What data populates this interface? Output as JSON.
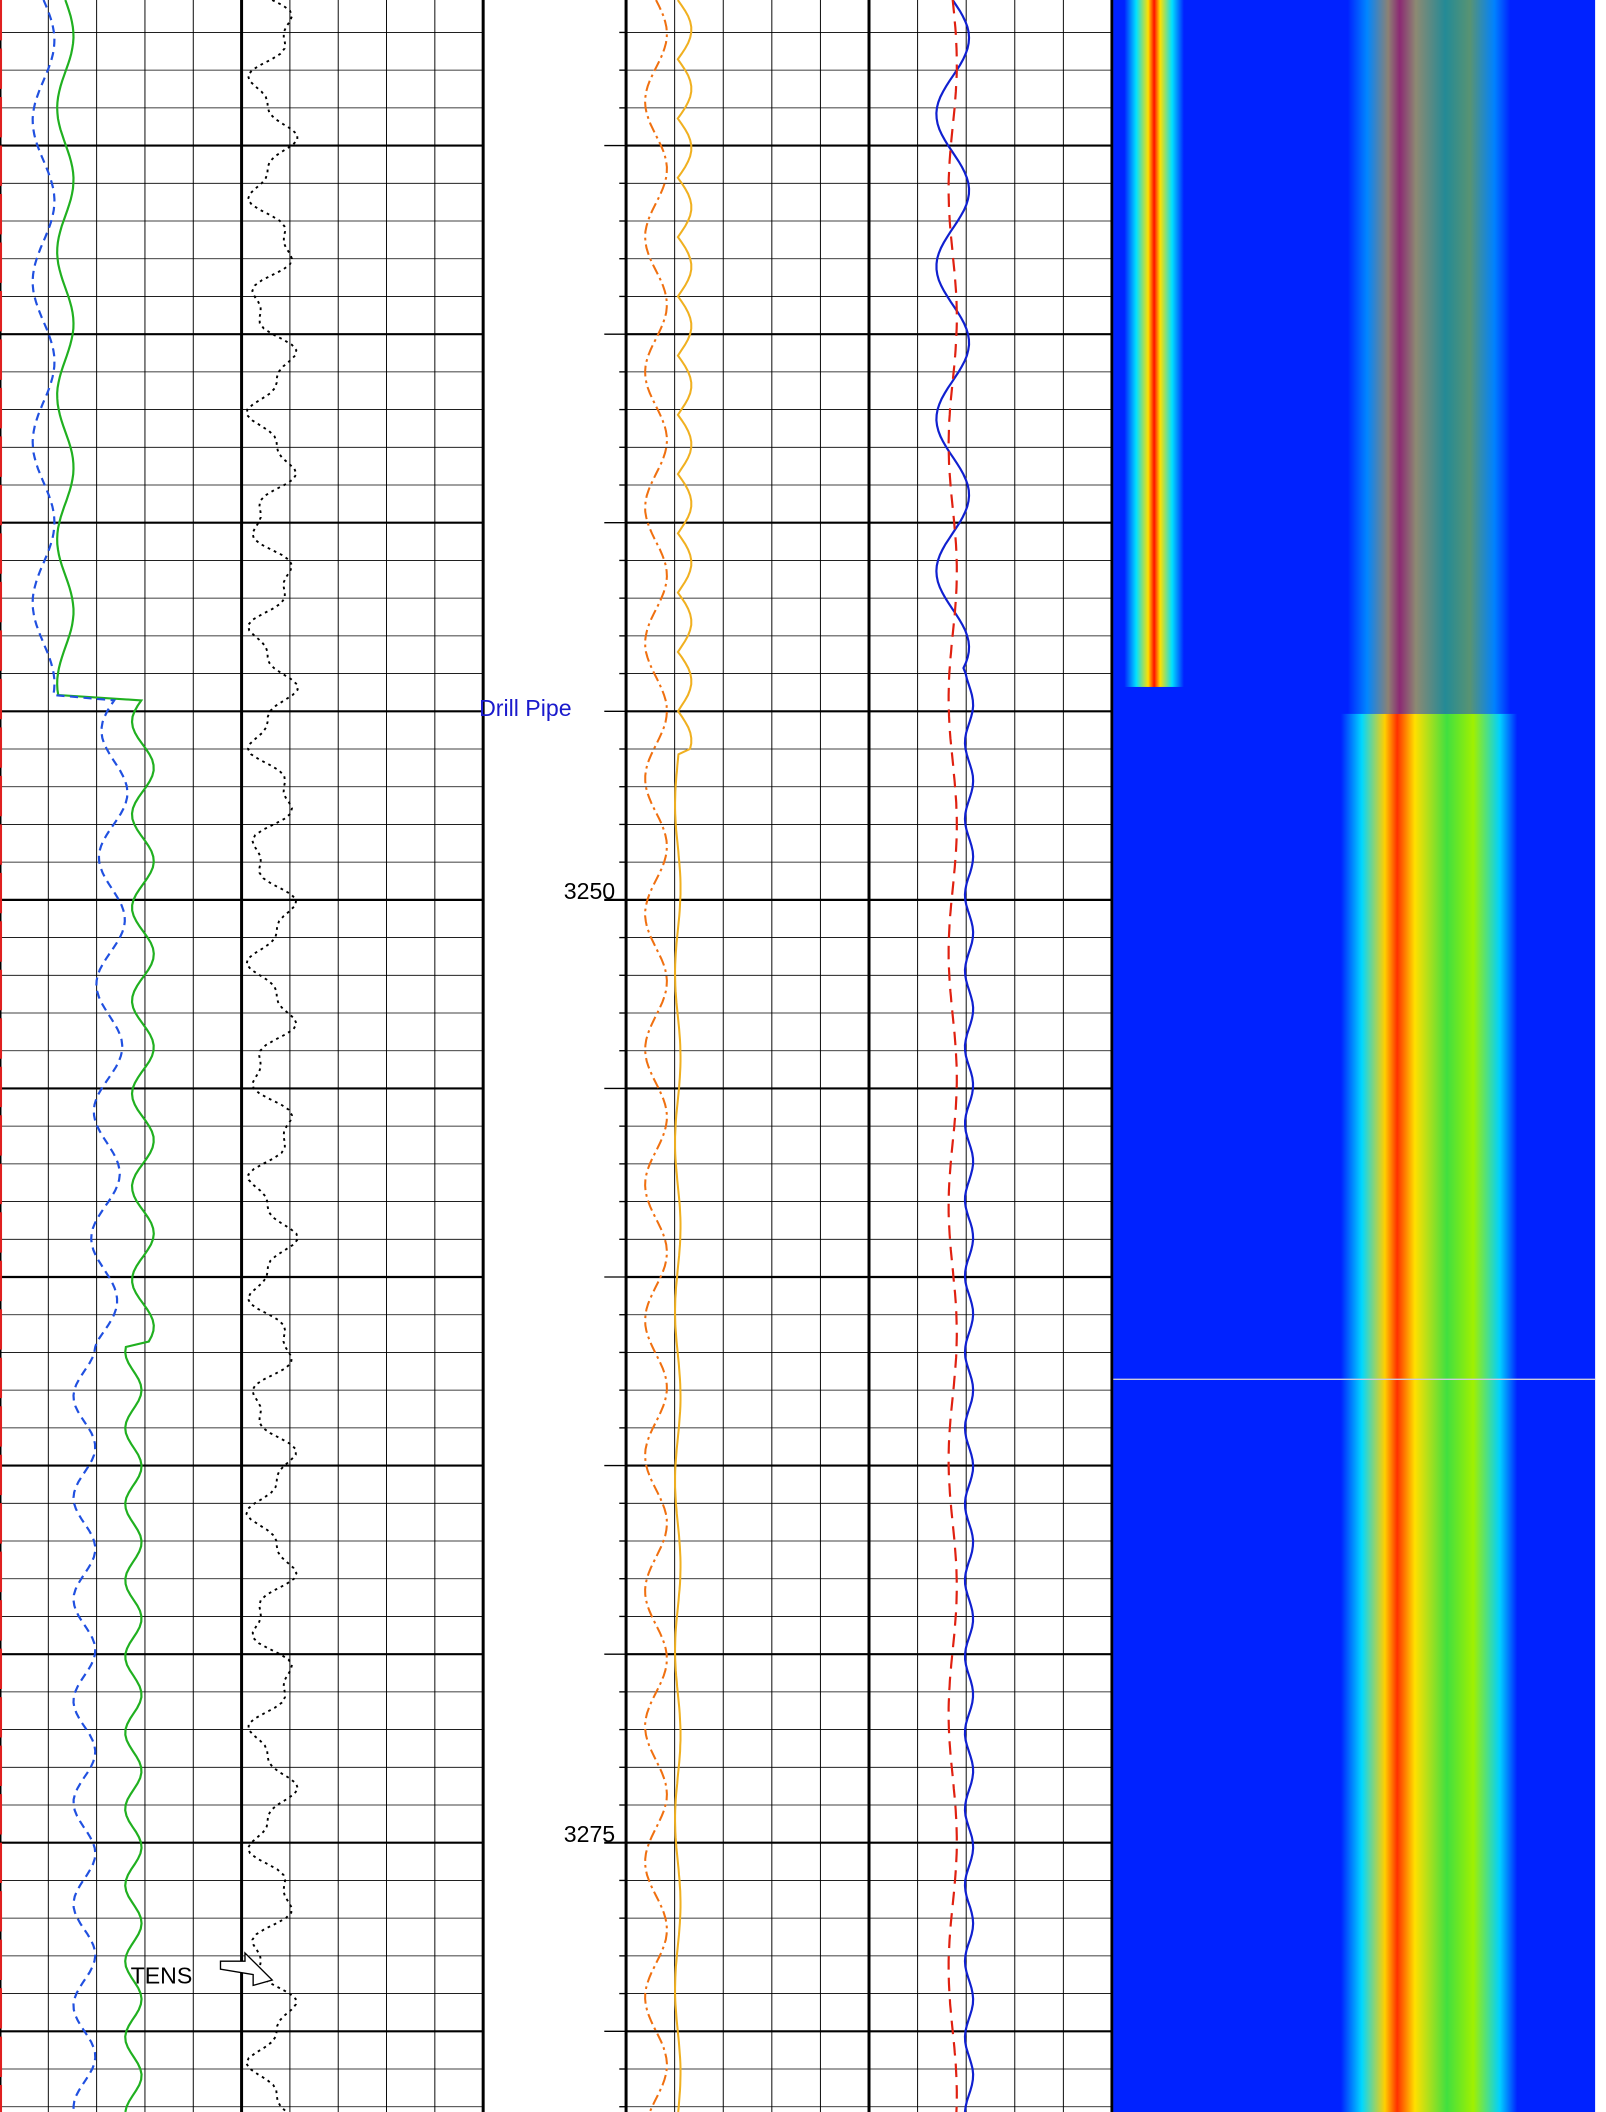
{
  "chart_data": {
    "type": "well-log",
    "ylim": [
      3226.14,
      3282.14
    ],
    "yticks": [
      3250,
      3275
    ],
    "annotations": [
      "Drill Pipe",
      "TENS"
    ]
  }
}
